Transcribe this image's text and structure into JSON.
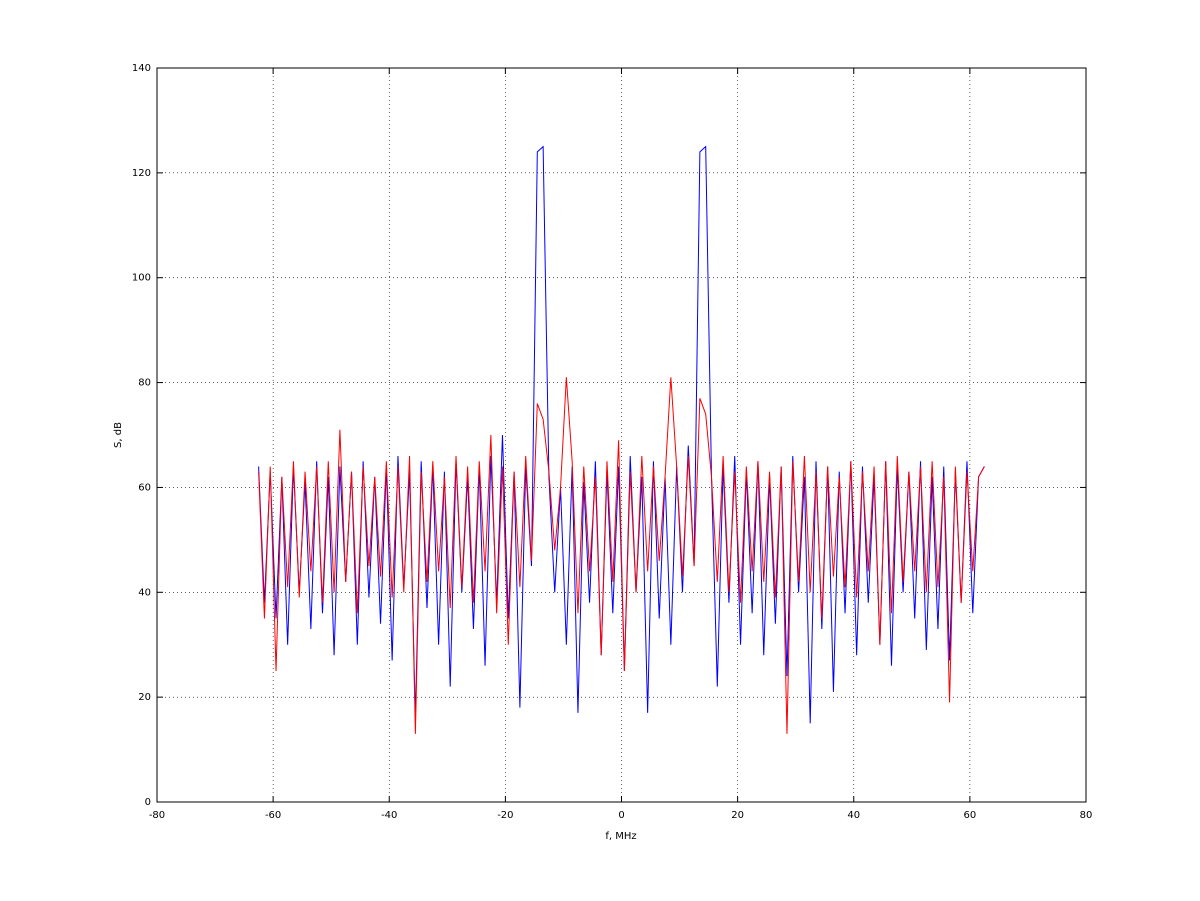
{
  "chart_data": {
    "type": "line",
    "xlabel": "f, MHz",
    "ylabel": "S, dB",
    "xlim": [
      -80,
      80
    ],
    "ylim": [
      0,
      140
    ],
    "xticks": [
      -80,
      -60,
      -40,
      -20,
      0,
      20,
      40,
      60,
      80
    ],
    "yticks": [
      0,
      20,
      40,
      60,
      80,
      100,
      120,
      140
    ],
    "grid": true,
    "x": [
      -62.5,
      -61.5,
      -60.5,
      -59.5,
      -58.5,
      -57.5,
      -56.5,
      -55.5,
      -54.5,
      -53.5,
      -52.5,
      -51.5,
      -50.5,
      -49.5,
      -48.5,
      -47.5,
      -46.5,
      -45.5,
      -44.5,
      -43.5,
      -42.5,
      -41.5,
      -40.5,
      -39.5,
      -38.5,
      -37.5,
      -36.5,
      -35.5,
      -34.5,
      -33.5,
      -32.5,
      -31.5,
      -30.5,
      -29.5,
      -28.5,
      -27.5,
      -26.5,
      -25.5,
      -24.5,
      -23.5,
      -22.5,
      -21.5,
      -20.5,
      -19.5,
      -18.5,
      -17.5,
      -16.5,
      -15.5,
      -14.5,
      -13.5,
      -12.5,
      -11.5,
      -10.5,
      -9.5,
      -8.5,
      -7.5,
      -6.5,
      -5.5,
      -4.5,
      -3.5,
      -2.5,
      -1.5,
      -0.5,
      0.5,
      1.5,
      2.5,
      3.5,
      4.5,
      5.5,
      6.5,
      7.5,
      8.5,
      9.5,
      10.5,
      11.5,
      12.5,
      13.5,
      14.5,
      15.5,
      16.5,
      17.5,
      18.5,
      19.5,
      20.5,
      21.5,
      22.5,
      23.5,
      24.5,
      25.5,
      26.5,
      27.5,
      28.5,
      29.5,
      30.5,
      31.5,
      32.5,
      33.5,
      34.5,
      35.5,
      36.5,
      37.5,
      38.5,
      39.5,
      40.5,
      41.5,
      42.5,
      43.5,
      44.5,
      45.5,
      46.5,
      47.5,
      48.5,
      49.5,
      50.5,
      51.5,
      52.5,
      53.5,
      54.5,
      55.5,
      56.5,
      57.5,
      58.5,
      59.5,
      60.5,
      61.5,
      62.5
    ],
    "series": [
      {
        "color": "#0000ff",
        "values": [
          64,
          38,
          63,
          35,
          62,
          30,
          64,
          40,
          61,
          33,
          65,
          36,
          62,
          28,
          64,
          42,
          63,
          30,
          65,
          39,
          62,
          34,
          64,
          27,
          66,
          41,
          63,
          16,
          65,
          37,
          64,
          30,
          63,
          22,
          65,
          40,
          62,
          33,
          64,
          26,
          66,
          38,
          70,
          35,
          63,
          18,
          64,
          45,
          124,
          125,
          62,
          40,
          60,
          30,
          64,
          17,
          61,
          38,
          65,
          28,
          63,
          36,
          64,
          25,
          66,
          40,
          62,
          17,
          65,
          35,
          62,
          30,
          64,
          40,
          68,
          45,
          124,
          125,
          62,
          22,
          64,
          38,
          66,
          30,
          63,
          36,
          65,
          28,
          62,
          34,
          64,
          24,
          66,
          40,
          62,
          15,
          65,
          33,
          64,
          21,
          63,
          36,
          65,
          28,
          64,
          38,
          62,
          30,
          65,
          26,
          64,
          40,
          63,
          35,
          65,
          29,
          62,
          33,
          64,
          27,
          63,
          38,
          65,
          36,
          62,
          64
        ]
      },
      {
        "color": "#ff0000",
        "values": [
          63,
          35,
          64,
          25,
          62,
          41,
          65,
          39,
          63,
          44,
          64,
          38,
          65,
          40,
          71,
          42,
          63,
          36,
          64,
          45,
          62,
          43,
          65,
          39,
          64,
          40,
          66,
          13,
          63,
          42,
          65,
          44,
          62,
          37,
          66,
          41,
          64,
          38,
          65,
          44,
          70,
          36,
          64,
          30,
          63,
          41,
          66,
          46,
          76,
          73,
          63,
          48,
          60,
          81,
          65,
          36,
          64,
          44,
          62,
          28,
          65,
          42,
          69,
          25,
          63,
          40,
          66,
          44,
          64,
          46,
          62,
          81,
          64,
          43,
          66,
          45,
          77,
          74,
          62,
          42,
          66,
          40,
          63,
          38,
          64,
          44,
          65,
          42,
          63,
          39,
          64,
          13,
          65,
          42,
          66,
          40,
          63,
          35,
          64,
          43,
          62,
          41,
          65,
          39,
          63,
          44,
          64,
          30,
          65,
          36,
          66,
          42,
          63,
          44,
          64,
          40,
          65,
          41,
          62,
          19,
          64,
          38,
          63,
          44,
          62,
          64
        ]
      }
    ]
  }
}
